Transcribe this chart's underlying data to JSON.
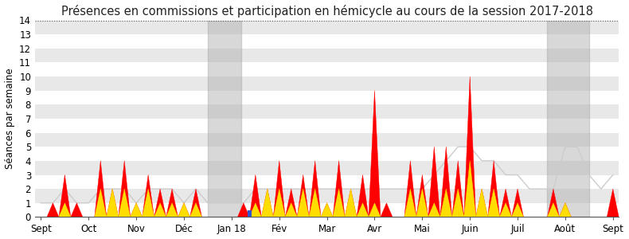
{
  "title": "Présences en commissions et participation en hémicycle au cours de la session 2017-2018",
  "ylabel": "Séances par semaine",
  "ylim": [
    0,
    14
  ],
  "yticks": [
    0,
    1,
    2,
    3,
    4,
    5,
    6,
    7,
    8,
    9,
    10,
    11,
    12,
    13,
    14
  ],
  "x_labels": [
    "Sept",
    "Oct",
    "Nov",
    "Déc",
    "Jan 18",
    "Fév",
    "Mar",
    "Avr",
    "Mai",
    "Juin",
    "Juil",
    "Août",
    "Sept"
  ],
  "x_positions": [
    0,
    4,
    8,
    12,
    16,
    20,
    24,
    28,
    32,
    36,
    40,
    44,
    48
  ],
  "shade_regions": [
    {
      "xmin": 14.0,
      "xmax": 16.8
    },
    {
      "xmin": 42.5,
      "xmax": 46.0
    }
  ],
  "background_bands": [
    {
      "ymin": 0,
      "ymax": 1,
      "color": "#ffffff"
    },
    {
      "ymin": 1,
      "ymax": 2,
      "color": "#e8e8e8"
    },
    {
      "ymin": 2,
      "ymax": 3,
      "color": "#ffffff"
    },
    {
      "ymin": 3,
      "ymax": 4,
      "color": "#e8e8e8"
    },
    {
      "ymin": 4,
      "ymax": 5,
      "color": "#ffffff"
    },
    {
      "ymin": 5,
      "ymax": 6,
      "color": "#e8e8e8"
    },
    {
      "ymin": 6,
      "ymax": 7,
      "color": "#ffffff"
    },
    {
      "ymin": 7,
      "ymax": 8,
      "color": "#e8e8e8"
    },
    {
      "ymin": 8,
      "ymax": 9,
      "color": "#ffffff"
    },
    {
      "ymin": 9,
      "ymax": 10,
      "color": "#e8e8e8"
    },
    {
      "ymin": 10,
      "ymax": 11,
      "color": "#ffffff"
    },
    {
      "ymin": 11,
      "ymax": 12,
      "color": "#e8e8e8"
    },
    {
      "ymin": 12,
      "ymax": 13,
      "color": "#ffffff"
    },
    {
      "ymin": 13,
      "ymax": 14,
      "color": "#e8e8e8"
    }
  ],
  "red_x": [
    0,
    0,
    1,
    1,
    2,
    2,
    3,
    3,
    4,
    4,
    5,
    5,
    6,
    6,
    7,
    7,
    8,
    8,
    9,
    9,
    10,
    10,
    11,
    11,
    12,
    12,
    13,
    13,
    17,
    17,
    18,
    18,
    19,
    19,
    20,
    20,
    21,
    21,
    22,
    22,
    23,
    23,
    24,
    24,
    25,
    25,
    26,
    26,
    27,
    27,
    28,
    28,
    29,
    29,
    31,
    31,
    32,
    32,
    33,
    33,
    34,
    34,
    35,
    35,
    36,
    36,
    37,
    37,
    38,
    38,
    39,
    39,
    40,
    40,
    43,
    43,
    44,
    44,
    47,
    47,
    48,
    48
  ],
  "red_y": [
    0,
    0,
    0,
    1,
    0,
    3,
    0,
    1,
    0,
    0,
    0,
    4,
    0,
    2,
    0,
    4,
    0,
    1,
    0,
    3,
    0,
    2,
    0,
    2,
    0,
    1,
    0,
    2,
    0,
    1,
    0,
    3,
    0,
    2,
    0,
    4,
    0,
    2,
    0,
    3,
    0,
    4,
    0,
    1,
    0,
    4,
    0,
    2,
    0,
    3,
    0,
    9,
    0,
    1,
    0,
    4,
    0,
    3,
    0,
    5,
    0,
    5,
    0,
    4,
    0,
    10,
    0,
    2,
    0,
    4,
    0,
    2,
    0,
    2,
    0,
    2,
    0,
    1,
    0,
    0,
    0,
    2
  ],
  "yellow_x": [
    0,
    0,
    1,
    1,
    2,
    2,
    3,
    3,
    4,
    4,
    5,
    5,
    6,
    6,
    7,
    7,
    8,
    8,
    9,
    9,
    10,
    10,
    11,
    11,
    12,
    12,
    13,
    13,
    17,
    17,
    18,
    18,
    19,
    19,
    20,
    20,
    21,
    21,
    22,
    22,
    23,
    23,
    24,
    24,
    25,
    25,
    26,
    26,
    27,
    27,
    28,
    28,
    29,
    29,
    31,
    31,
    32,
    32,
    33,
    33,
    34,
    34,
    35,
    35,
    36,
    36,
    37,
    37,
    38,
    38,
    39,
    39,
    40,
    40,
    43,
    43,
    44,
    44,
    47,
    47,
    48,
    48
  ],
  "yellow_y": [
    0,
    0,
    0,
    0,
    0,
    1,
    0,
    0,
    0,
    0,
    0,
    2,
    0,
    2,
    0,
    2,
    0,
    1,
    0,
    2,
    0,
    1,
    0,
    1,
    0,
    1,
    0,
    1,
    0,
    0,
    0,
    1,
    0,
    2,
    0,
    2,
    0,
    1,
    0,
    2,
    0,
    2,
    0,
    1,
    0,
    2,
    0,
    2,
    0,
    1,
    0,
    1,
    0,
    0,
    0,
    2,
    0,
    2,
    0,
    1,
    0,
    2,
    0,
    2,
    0,
    4,
    0,
    2,
    0,
    2,
    0,
    1,
    0,
    1,
    0,
    1,
    0,
    1,
    0,
    0,
    0,
    0
  ],
  "blue_bar_x": [
    17.5
  ],
  "blue_bar_y": [
    0.5
  ],
  "gray_line_x": [
    0,
    1,
    2,
    3,
    4,
    5,
    6,
    7,
    8,
    9,
    10,
    11,
    12,
    13,
    14,
    15,
    16,
    17,
    18,
    19,
    20,
    21,
    22,
    23,
    24,
    25,
    26,
    27,
    28,
    29,
    30,
    31,
    32,
    33,
    34,
    35,
    36,
    37,
    38,
    39,
    40,
    41,
    42,
    43,
    44,
    45,
    46,
    47,
    48
  ],
  "gray_line_y": [
    1,
    1,
    2,
    1,
    1,
    2,
    2,
    2,
    1,
    2,
    2,
    2,
    1,
    2,
    1,
    1,
    1,
    1,
    2,
    2,
    2,
    2,
    2,
    2,
    2,
    2,
    2,
    2,
    2,
    2,
    2,
    2,
    2,
    3,
    4,
    5,
    5,
    4,
    4,
    3,
    3,
    2,
    2,
    2,
    5,
    5,
    3,
    2,
    3
  ],
  "colors": {
    "red": "#ff0000",
    "yellow": "#ffdd00",
    "blue": "#3355cc",
    "gray_line": "#cccccc",
    "shade": "#aaaaaa",
    "bg": "#ffffff",
    "title": "#222222"
  },
  "title_fontsize": 10.5,
  "tick_fontsize": 8.5,
  "ylabel_fontsize": 8.5
}
